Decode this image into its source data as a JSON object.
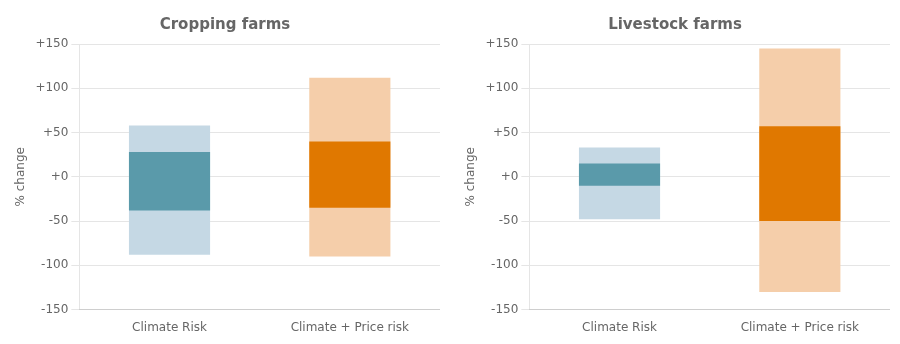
{
  "chart_data": [
    {
      "type": "bar",
      "title": "Cropping farms",
      "categories": [
        "Climate Risk",
        "Climate + Price risk"
      ],
      "series": [
        {
          "values": [
            [
              -88,
              58
            ],
            [
              -90,
              112
            ]
          ],
          "colors": [
            "#c5d8e4",
            "#f5ceaa"
          ]
        },
        {
          "values": [
            [
              -38,
              28
            ],
            [
              -35,
              40
            ]
          ],
          "colors": [
            "#5a9aaa",
            "#e07800"
          ]
        }
      ],
      "ylabel": "% change",
      "ylim": [
        -150,
        150
      ],
      "yticks": [
        -150,
        -100,
        -50,
        {
          "value": 0,
          "label": "+0"
        },
        {
          "value": 50,
          "label": "+50"
        },
        {
          "value": 100,
          "label": "+100"
        },
        {
          "value": 150,
          "label": "+150"
        }
      ],
      "grid": true
    },
    {
      "type": "bar",
      "title": "Livestock farms",
      "categories": [
        "Climate Risk",
        "Climate + Price risk"
      ],
      "series": [
        {
          "values": [
            [
              -48,
              33
            ],
            [
              -130,
              145
            ]
          ],
          "colors": [
            "#c5d8e4",
            "#f5ceaa"
          ]
        },
        {
          "values": [
            [
              -10,
              15
            ],
            [
              -50,
              57
            ]
          ],
          "colors": [
            "#5a9aaa",
            "#e07800"
          ]
        }
      ],
      "ylabel": "% change",
      "ylim": [
        -150,
        150
      ],
      "yticks": [
        -150,
        -100,
        -50,
        {
          "value": 0,
          "label": "+0"
        },
        {
          "value": 50,
          "label": "+50"
        },
        {
          "value": 100,
          "label": "+100"
        },
        {
          "value": 150,
          "label": "+150"
        }
      ],
      "grid": true
    }
  ]
}
